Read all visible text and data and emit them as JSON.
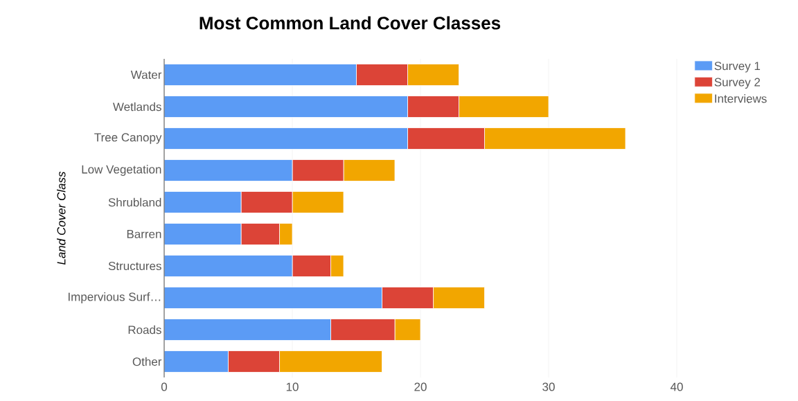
{
  "chart_data": {
    "type": "bar",
    "orientation": "horizontal",
    "stacked": true,
    "title": "Most Common Land Cover Classes",
    "ylabel": "Land Cover Class",
    "categories": [
      "Water",
      "Wetlands",
      "Tree Canopy",
      "Low Vegetation",
      "Shrubland",
      "Barren",
      "Structures",
      "Impervious Surf…",
      "Roads",
      "Other"
    ],
    "series": [
      {
        "name": "Survey 1",
        "color": "#5b9bf5",
        "values": [
          15,
          19,
          19,
          10,
          6,
          6,
          10,
          17,
          13,
          5
        ]
      },
      {
        "name": "Survey 2",
        "color": "#dc4437",
        "values": [
          4,
          4,
          6,
          4,
          4,
          3,
          3,
          4,
          5,
          4
        ]
      },
      {
        "name": "Interviews",
        "color": "#f2a600",
        "values": [
          4,
          7,
          11,
          4,
          4,
          1,
          1,
          4,
          2,
          8
        ]
      }
    ],
    "xlim": [
      0,
      40
    ],
    "xticks": [
      0,
      10,
      20,
      30,
      40
    ],
    "grid": "x",
    "legend": "top right"
  }
}
